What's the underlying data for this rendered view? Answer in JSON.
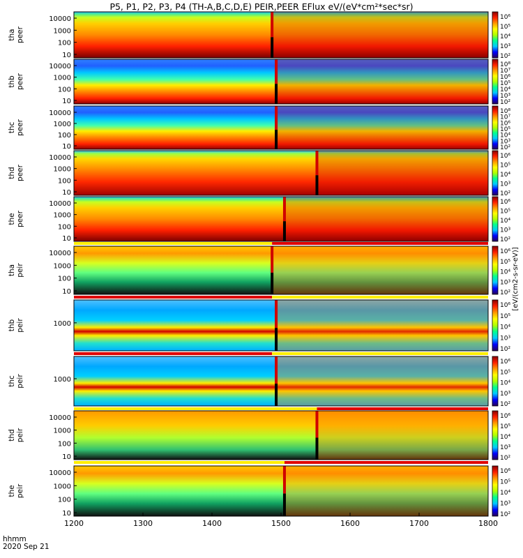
{
  "title": "P5, P1, P2, P3, P4 (TH-A,B,C,D,E) PEIR,PEER EFlux eV/(eV*cm²*sec*sr)",
  "footer": {
    "time_label": "hhmm",
    "date_label": "2020 Sep 21"
  },
  "colorbar_unit_label": "[eV/(cm2-s-sr-eV)]",
  "chart_data": {
    "type": "heatmap",
    "title": "P5, P1, P2, P3, P4 (TH-A,B,C,D,E) PEIR,PEER EFlux eV/(eV*cm²*sec*sr)",
    "xlabel": "hhmm",
    "x_ticks": [
      "1200",
      "1300",
      "1400",
      "1500",
      "1600",
      "1700",
      "1800"
    ],
    "xlim": [
      1200,
      1800
    ],
    "colorscale": [
      "#2a0058",
      "#0000ff",
      "#00c8ff",
      "#00ff90",
      "#b0ff00",
      "#ffff00",
      "#ff9900",
      "#ff2000",
      "#8a0000"
    ],
    "panels": [
      {
        "name": "tha peer",
        "ylabel": [
          "tha",
          "peer"
        ],
        "yticks": [
          "10000",
          "1000",
          "100",
          "10"
        ],
        "cbar_ticks": [
          "10⁶",
          "10⁵",
          "10⁴",
          "10³",
          "10²"
        ],
        "event_time": 1487
      },
      {
        "name": "thb peer",
        "ylabel": [
          "thb",
          "peer"
        ],
        "yticks": [
          "10000",
          "1000",
          "100",
          "10"
        ],
        "cbar_ticks": [
          "10⁸",
          "10⁷",
          "10⁶",
          "10⁵",
          "10⁴",
          "10³",
          "10²"
        ],
        "event_time": 1493
      },
      {
        "name": "thc peer",
        "ylabel": [
          "thc",
          "peer"
        ],
        "yticks": [
          "10000",
          "1000",
          "100",
          "10"
        ],
        "cbar_ticks": [
          "10⁸",
          "10⁷",
          "10⁶",
          "10⁵",
          "10⁴",
          "10³",
          "10²"
        ],
        "event_time": 1493
      },
      {
        "name": "thd peer",
        "ylabel": [
          "thd",
          "peer"
        ],
        "yticks": [
          "10000",
          "1000",
          "100",
          "10"
        ],
        "cbar_ticks": [
          "10⁶",
          "10⁵",
          "10⁴",
          "10³",
          "10²"
        ],
        "event_time": 1552
      },
      {
        "name": "the peer",
        "ylabel": [
          "the",
          "peer"
        ],
        "yticks": [
          "10000",
          "1000",
          "100",
          "10"
        ],
        "cbar_ticks": [
          "10⁶",
          "10⁵",
          "10⁴",
          "10³",
          "10²"
        ],
        "event_time": 1505
      },
      {
        "name": "tha peir",
        "ylabel": [
          "tha",
          "peir"
        ],
        "yticks": [
          "10000",
          "1000",
          "100",
          "10"
        ],
        "cbar_ticks": [
          "10⁶",
          "10⁵",
          "10⁴",
          "10³",
          "10²"
        ],
        "event_time": 1487
      },
      {
        "name": "thb peir",
        "ylabel": [
          "thb",
          "peir"
        ],
        "yticks": [
          "1000"
        ],
        "cbar_ticks": [
          "10⁶",
          "10⁵",
          "10⁴",
          "10³",
          "10²"
        ],
        "event_time": 1493
      },
      {
        "name": "thc peir",
        "ylabel": [
          "thc",
          "peir"
        ],
        "yticks": [
          "1000"
        ],
        "cbar_ticks": [
          "10⁶",
          "10⁵",
          "10⁴",
          "10³",
          "10²"
        ],
        "event_time": 1493
      },
      {
        "name": "thd peir",
        "ylabel": [
          "thd",
          "peir"
        ],
        "yticks": [
          "10000",
          "1000",
          "100",
          "10"
        ],
        "cbar_ticks": [
          "10⁶",
          "10⁵",
          "10⁴",
          "10³",
          "10²"
        ],
        "event_time": 1552
      },
      {
        "name": "the peir",
        "ylabel": [
          "the",
          "peir"
        ],
        "yticks": [
          "10000",
          "1000",
          "100",
          "10"
        ],
        "cbar_ticks": [
          "10⁶",
          "10⁵",
          "10⁴",
          "10³",
          "10²"
        ],
        "event_time": 1505
      }
    ]
  }
}
